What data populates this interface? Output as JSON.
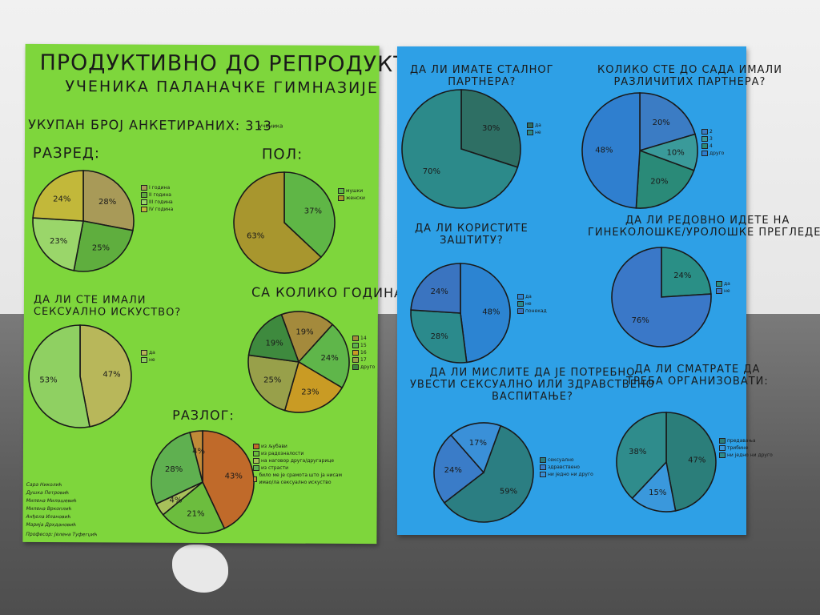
{
  "green_poster": {
    "title": "ПРОДУКТИВНО ДО РЕПРОДУКТИВНОГ",
    "subtitle": "УЧЕНИКА ПАЛАНАЧКЕ ГИМНАЗИЈЕ",
    "total_label": "УКУПАН БРОЈ АНКЕТИРАНИХ: 313",
    "total_unit": "ученика",
    "authors": [
      "Сара Николић",
      "Душка Петровић",
      "Милена Милошевић",
      "Милена Вркоплић",
      "Анђела Илановић",
      "Марија Дрхдановић"
    ],
    "professor": "Професор: Јелена Туфегџић"
  },
  "blue_poster": {},
  "chart_data": [
    {
      "id": "razred",
      "type": "pie",
      "title": "РАЗРЕД:",
      "categories": [
        "I година",
        "II година",
        "III година",
        "IV година"
      ],
      "values": [
        28,
        25,
        23,
        24
      ],
      "labels": [
        "28%",
        "25%",
        "23%",
        "24%"
      ],
      "colors": [
        "#a89a58",
        "#5fae3e",
        "#9ad66a",
        "#c2b83a"
      ]
    },
    {
      "id": "pol",
      "type": "pie",
      "title": "ПОЛ:",
      "categories": [
        "мушки",
        "женски"
      ],
      "values": [
        37,
        63
      ],
      "labels": [
        "37%",
        "63%"
      ],
      "colors": [
        "#5fb646",
        "#a8962e"
      ]
    },
    {
      "id": "iskustvo",
      "type": "pie",
      "title": "ДА ЛИ СТЕ ИМАЛИ СЕКСУАЛНО ИСКУСТВО?",
      "categories": [
        "да",
        "не"
      ],
      "values": [
        47,
        53
      ],
      "labels": [
        "47%",
        "53%"
      ],
      "colors": [
        "#b8b75a",
        "#8fd062"
      ]
    },
    {
      "id": "godine",
      "type": "pie",
      "title": "СА КОЛИКО ГОДИНА?",
      "categories": [
        "14",
        "15",
        "16",
        "17",
        "друго"
      ],
      "values": [
        19,
        24,
        23,
        25,
        19
      ],
      "labels": [
        "19%",
        "24%",
        "23%",
        "25%",
        "19%"
      ],
      "order": [
        0,
        1,
        2,
        3,
        4
      ],
      "colors": [
        "#a48a3c",
        "#5fb64a",
        "#c99b24",
        "#98a04a",
        "#3e8a3e"
      ]
    },
    {
      "id": "razlog",
      "type": "pie",
      "title": "РАЗЛОГ:",
      "categories": [
        "из љубави",
        "из радозналости",
        "на наговор друга/другарице",
        "из страсти",
        "било ме је срамота што ја нисам имао/ла сексуално искуство"
      ],
      "values": [
        43,
        21,
        4,
        28,
        4
      ],
      "labels": [
        "43%",
        "21%",
        "4%",
        "28%",
        "4%"
      ],
      "colors": [
        "#c06a2a",
        "#6cbd3e",
        "#a8c05a",
        "#5fb050",
        "#c08a38"
      ]
    },
    {
      "id": "partner",
      "type": "pie",
      "title": "ДА ЛИ ИМАТЕ СТАЛНОГ ПАРТНЕРА?",
      "categories": [
        "да",
        "не"
      ],
      "values": [
        30,
        70
      ],
      "labels": [
        "30%",
        "70%"
      ],
      "colors": [
        "#2e6f64",
        "#2c8a8a"
      ]
    },
    {
      "id": "broj",
      "type": "pie",
      "title": "КОЛИКО СТЕ ДО САДА ИМАЛИ РАЗЛИЧИТИХ ПАРТНЕРА?",
      "categories": [
        "2",
        "3",
        "4",
        "друго"
      ],
      "values": [
        20,
        10,
        20,
        48
      ],
      "labels": [
        "20%",
        "10%",
        "20%",
        "48%"
      ],
      "colors": [
        "#3b7cc4",
        "#3a9a9a",
        "#2a8a78",
        "#2f7fcf"
      ]
    },
    {
      "id": "zastita",
      "type": "pie",
      "title": "ДА ЛИ КОРИСТИТЕ ЗАШТИТУ?",
      "categories": [
        "да",
        "не",
        "понекад"
      ],
      "values": [
        48,
        28,
        24
      ],
      "labels": [
        "48%",
        "28%",
        "24%"
      ],
      "colors": [
        "#2c84d2",
        "#2b8a8c",
        "#3a74c0"
      ]
    },
    {
      "id": "pregledi",
      "type": "pie",
      "title": "ДА ЛИ РЕДОВНО ИДЕТЕ НА ГИНЕКОЛОШКЕ/УРОЛОШКЕ ПРЕГЛЕДЕ?",
      "categories": [
        "да",
        "не"
      ],
      "values": [
        24,
        76
      ],
      "labels": [
        "24%",
        "76%"
      ],
      "colors": [
        "#2a8f86",
        "#3a78c8"
      ]
    },
    {
      "id": "vaspitanje",
      "type": "pie",
      "title": "ДА ЛИ МИСЛИТЕ ДА ЈЕ ПОТРЕБНО УВЕСТИ СЕКСУАЛНО ИЛИ ЗДРАВСТВЕНО ВАСПИТАЊЕ?",
      "categories": [
        "сексуално",
        "здравствено",
        "ни једно ни друго"
      ],
      "values": [
        59,
        24,
        17
      ],
      "labels": [
        "59%",
        "24%",
        "17%"
      ],
      "colors": [
        "#2b7e82",
        "#3a7cc8",
        "#3a90d8"
      ]
    },
    {
      "id": "organizovati",
      "type": "pie",
      "title": "ДА ЛИ СМАТРАТЕ ДА ТРЕБА ОРГАНИЗОВАТИ:",
      "categories": [
        "предавања",
        "трибине",
        "ни једно ни друго"
      ],
      "values": [
        47,
        15,
        38
      ],
      "labels": [
        "47%",
        "15%",
        "38%"
      ],
      "colors": [
        "#2b7e7a",
        "#3a98dc",
        "#2f8c8c"
      ]
    }
  ]
}
